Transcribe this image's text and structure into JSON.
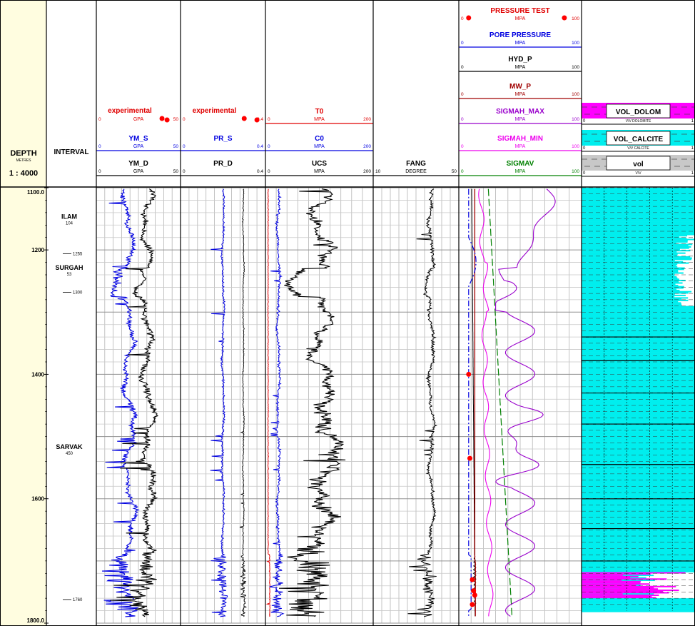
{
  "chart_data": {
    "type": "line",
    "depth_header": {
      "title": "DEPTH",
      "unit": "METRES",
      "scale": "1 : 4000"
    },
    "interval_header": "INTERVAL",
    "depth_range": [
      1100,
      1800
    ],
    "depth_labels": [
      {
        "depth": 1100,
        "label": "1100.0"
      },
      {
        "depth": 1200,
        "label": "1200"
      },
      {
        "depth": 1400,
        "label": "1400"
      },
      {
        "depth": 1600,
        "label": "1600"
      },
      {
        "depth": 1800,
        "label": "1800.0"
      }
    ],
    "formations": [
      {
        "name": "ILAM",
        "sub": "104",
        "depth": 1150
      },
      {
        "name": "SURGAH",
        "sub": "53",
        "depth": 1232
      },
      {
        "name": "SARVAK",
        "sub": "450",
        "depth": 1520
      }
    ],
    "interval_markers": [
      {
        "label": "1255",
        "depth": 1206
      },
      {
        "label": "1300",
        "depth": 1268
      },
      {
        "label": "1760",
        "depth": 1762
      }
    ],
    "tracks": [
      {
        "id": "track1",
        "curves": [
          {
            "name": "experimental",
            "unit": "GPA",
            "min": "0",
            "max": "50",
            "color": "#e00000",
            "style": "dots"
          },
          {
            "name": "YM_S",
            "unit": "GPA",
            "min": "0",
            "max": "50",
            "color": "#0000e0"
          },
          {
            "name": "YM_D",
            "unit": "GPA",
            "min": "0",
            "max": "50",
            "color": "#000000"
          }
        ]
      },
      {
        "id": "track2",
        "curves": [
          {
            "name": "experimental",
            "unit": "",
            "min": "0",
            "max": "0.4",
            "color": "#e00000",
            "style": "dots"
          },
          {
            "name": "PR_S",
            "unit": "",
            "min": "0",
            "max": "0.4",
            "color": "#0000e0"
          },
          {
            "name": "PR_D",
            "unit": "",
            "min": "0",
            "max": "0.4",
            "color": "#000000"
          }
        ]
      },
      {
        "id": "track3",
        "curves": [
          {
            "name": "T0",
            "unit": "MPA",
            "min": "0",
            "max": "200",
            "color": "#e00000"
          },
          {
            "name": "C0",
            "unit": "MPA",
            "min": "0",
            "max": "200",
            "color": "#0000e0"
          },
          {
            "name": "UCS",
            "unit": "MPA",
            "min": "0",
            "max": "200",
            "color": "#000000"
          }
        ]
      },
      {
        "id": "track4",
        "curves": [
          {
            "name": "FANG",
            "unit": "DEGREE",
            "min": "10",
            "max": "50",
            "color": "#000000"
          }
        ]
      },
      {
        "id": "track5",
        "curves": [
          {
            "name": "PRESSURE TEST",
            "unit": "MPA",
            "min": "0",
            "max": "100",
            "color": "#e00000",
            "style": "dots"
          },
          {
            "name": "PORE PRESSURE",
            "unit": "MPA",
            "min": "0",
            "max": "100",
            "color": "#0000e0"
          },
          {
            "name": "HYD_P",
            "unit": "MPA",
            "min": "0",
            "max": "100",
            "color": "#000000"
          },
          {
            "name": "MW_P",
            "unit": "MPA",
            "min": "0",
            "max": "100",
            "color": "#a00000"
          },
          {
            "name": "SIGMAH_MAX",
            "unit": "MPA",
            "min": "0",
            "max": "100",
            "color": "#9900cc"
          },
          {
            "name": "SIGMAH_MIN",
            "unit": "MPA",
            "min": "0",
            "max": "100",
            "color": "#ee00ee"
          },
          {
            "name": "SIGMAV",
            "unit": "MPA",
            "min": "0",
            "max": "100",
            "color": "#008000"
          }
        ]
      },
      {
        "id": "track6",
        "curves": [
          {
            "name": "VOL_DOLOM",
            "unit": "V/V DOLOMITE",
            "min": "0",
            "max": "1",
            "color": "#ff00ff"
          },
          {
            "name": "VOL_CALCITE",
            "unit": "V/V CALCITE",
            "min": "0",
            "max": "1",
            "color": "#00eeee"
          },
          {
            "name": "vol",
            "unit": "V/V",
            "min": "0",
            "max": "1",
            "color": "#c8c8c8"
          }
        ]
      }
    ],
    "experimental_points": {
      "ym": [
        [
          1095,
          39
        ],
        [
          1095,
          42
        ]
      ],
      "pr": [
        [
          1095,
          0.3
        ],
        [
          1095,
          0.36
        ]
      ]
    },
    "pressure_test_points": [
      [
        1400,
        8
      ],
      [
        1535,
        9
      ],
      [
        1730,
        11
      ],
      [
        1748,
        12
      ],
      [
        1755,
        13
      ],
      [
        1770,
        11
      ]
    ]
  }
}
